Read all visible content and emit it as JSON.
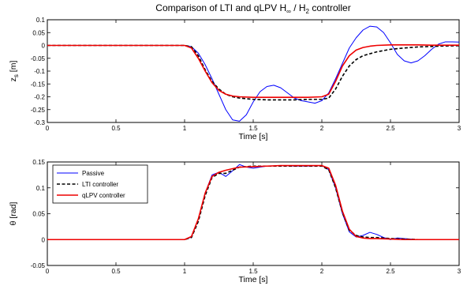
{
  "title": {
    "prefix": "Comparison of LTI and qLPV H",
    "sub": "∞",
    "middle": " / H",
    "sub2": "2",
    "suffix": " controller"
  },
  "colors": {
    "passive": "#0000ff",
    "lti": "#000000",
    "qlpv": "#ee0000",
    "axis": "#000000",
    "background": "#ffffff"
  },
  "chart_data": [
    {
      "type": "line",
      "xlabel": "Time [s]",
      "ylabel_main": "z",
      "ylabel_sub": "s",
      "ylabel_unit": " [m]",
      "xlim": [
        0,
        3
      ],
      "ylim": [
        -0.3,
        0.1
      ],
      "xticks": [
        0,
        0.5,
        1,
        1.5,
        2,
        2.5,
        3
      ],
      "xtick_labels": [
        "0",
        "0.5",
        "1",
        "1.5",
        "2",
        "2.5",
        "3"
      ],
      "yticks": [
        -0.3,
        -0.25,
        -0.2,
        -0.15,
        -0.1,
        -0.05,
        0,
        0.05,
        0.1
      ],
      "ytick_labels": [
        "-0.3",
        "-0.25",
        "-0.2",
        "-0.15",
        "-0.1",
        "-0.05",
        "0",
        "0.05",
        "0.1"
      ],
      "series": [
        {
          "key": "passive",
          "style": "solid",
          "x": [
            0,
            1.0,
            1.05,
            1.1,
            1.15,
            1.2,
            1.25,
            1.3,
            1.35,
            1.4,
            1.45,
            1.5,
            1.55,
            1.6,
            1.65,
            1.7,
            1.75,
            1.8,
            1.85,
            1.9,
            1.95,
            2.0,
            2.05,
            2.1,
            2.15,
            2.2,
            2.25,
            2.3,
            2.35,
            2.4,
            2.45,
            2.5,
            2.55,
            2.6,
            2.65,
            2.7,
            2.75,
            2.8,
            2.85,
            2.9,
            2.95,
            3.0
          ],
          "y": [
            0,
            0,
            -0.005,
            -0.03,
            -0.075,
            -0.13,
            -0.19,
            -0.25,
            -0.29,
            -0.295,
            -0.27,
            -0.22,
            -0.18,
            -0.16,
            -0.155,
            -0.165,
            -0.185,
            -0.205,
            -0.215,
            -0.22,
            -0.225,
            -0.215,
            -0.185,
            -0.13,
            -0.07,
            -0.01,
            0.03,
            0.06,
            0.075,
            0.072,
            0.05,
            0.01,
            -0.035,
            -0.06,
            -0.068,
            -0.06,
            -0.04,
            -0.015,
            0.005,
            0.014,
            0.014,
            0.013
          ]
        },
        {
          "key": "lti",
          "style": "dashed",
          "x": [
            0,
            1.0,
            1.05,
            1.1,
            1.15,
            1.2,
            1.25,
            1.3,
            1.35,
            1.4,
            1.5,
            1.6,
            1.7,
            1.8,
            1.9,
            2.0,
            2.05,
            2.1,
            2.15,
            2.2,
            2.25,
            2.3,
            2.4,
            2.5,
            2.6,
            2.7,
            2.8,
            2.9,
            3.0
          ],
          "y": [
            0,
            0,
            -0.005,
            -0.04,
            -0.095,
            -0.14,
            -0.17,
            -0.19,
            -0.2,
            -0.205,
            -0.21,
            -0.212,
            -0.212,
            -0.212,
            -0.21,
            -0.21,
            -0.205,
            -0.17,
            -0.12,
            -0.08,
            -0.055,
            -0.04,
            -0.025,
            -0.015,
            -0.01,
            -0.006,
            -0.004,
            -0.002,
            -0.001
          ]
        },
        {
          "key": "qlpv",
          "style": "solid",
          "x": [
            0,
            1.0,
            1.05,
            1.1,
            1.15,
            1.2,
            1.25,
            1.3,
            1.35,
            1.4,
            1.5,
            1.6,
            1.7,
            1.8,
            1.9,
            2.0,
            2.05,
            2.1,
            2.15,
            2.2,
            2.25,
            2.3,
            2.35,
            2.4,
            2.5,
            2.6,
            2.7,
            2.8,
            2.9,
            3.0
          ],
          "y": [
            0,
            0,
            -0.01,
            -0.05,
            -0.1,
            -0.145,
            -0.175,
            -0.19,
            -0.197,
            -0.2,
            -0.202,
            -0.202,
            -0.202,
            -0.202,
            -0.202,
            -0.2,
            -0.19,
            -0.14,
            -0.08,
            -0.04,
            -0.018,
            -0.008,
            -0.003,
            0.0,
            0.002,
            0.002,
            0.002,
            0.001,
            0.001,
            0.001
          ]
        }
      ]
    },
    {
      "type": "line",
      "xlabel": "Time [s]",
      "ylabel": "θ [rad]",
      "xlim": [
        0,
        3
      ],
      "ylim": [
        -0.05,
        0.15
      ],
      "xticks": [
        0,
        0.5,
        1,
        1.5,
        2,
        2.5,
        3
      ],
      "xtick_labels": [
        "0",
        "0.5",
        "1",
        "1.5",
        "2",
        "2.5",
        "3"
      ],
      "yticks": [
        -0.05,
        0,
        0.05,
        0.1,
        0.15
      ],
      "ytick_labels": [
        "-0.05",
        "0",
        "0.05",
        "0.1",
        "0.15"
      ],
      "legend": {
        "placement": "top-left",
        "entries": [
          "Passive",
          "LTI controller",
          "qLPV controller"
        ]
      },
      "series": [
        {
          "key": "passive",
          "name": "Passive",
          "style": "solid",
          "x": [
            0,
            1.0,
            1.05,
            1.1,
            1.15,
            1.2,
            1.25,
            1.3,
            1.35,
            1.4,
            1.45,
            1.5,
            1.55,
            1.6,
            1.7,
            1.8,
            1.9,
            2.0,
            2.05,
            2.1,
            2.15,
            2.2,
            2.25,
            2.3,
            2.35,
            2.4,
            2.45,
            2.5,
            2.55,
            2.6,
            2.7,
            2.8,
            2.9,
            3.0
          ],
          "y": [
            0,
            0,
            0.005,
            0.04,
            0.09,
            0.125,
            0.13,
            0.122,
            0.133,
            0.145,
            0.14,
            0.138,
            0.14,
            0.142,
            0.143,
            0.142,
            0.142,
            0.143,
            0.135,
            0.1,
            0.05,
            0.015,
            0.005,
            0.008,
            0.014,
            0.01,
            0.004,
            0.0,
            0.003,
            0.002,
            0.0,
            0.0,
            0.0,
            0.0
          ]
        },
        {
          "key": "lti",
          "name": "LTI controller",
          "style": "dashed",
          "x": [
            0,
            1.0,
            1.05,
            1.1,
            1.15,
            1.2,
            1.25,
            1.3,
            1.35,
            1.4,
            1.5,
            1.6,
            1.7,
            1.8,
            1.9,
            2.0,
            2.05,
            2.1,
            2.15,
            2.2,
            2.25,
            2.3,
            2.35,
            2.4,
            2.5,
            2.6,
            2.7,
            2.8,
            2.9,
            3.0
          ],
          "y": [
            0,
            0,
            0.004,
            0.035,
            0.085,
            0.12,
            0.128,
            0.128,
            0.134,
            0.14,
            0.142,
            0.142,
            0.142,
            0.142,
            0.142,
            0.142,
            0.135,
            0.1,
            0.052,
            0.018,
            0.008,
            0.005,
            0.004,
            0.004,
            0.002,
            0.001,
            0.0,
            0.0,
            0.0,
            0.0
          ]
        },
        {
          "key": "qlpv",
          "name": "qLPV controller",
          "style": "solid",
          "x": [
            0,
            1.0,
            1.05,
            1.1,
            1.15,
            1.2,
            1.25,
            1.3,
            1.35,
            1.4,
            1.5,
            1.6,
            1.7,
            1.8,
            1.9,
            2.0,
            2.05,
            2.1,
            2.15,
            2.2,
            2.25,
            2.3,
            2.35,
            2.4,
            2.5,
            2.6,
            2.7,
            2.8,
            2.9,
            3.0
          ],
          "y": [
            0,
            0,
            0.006,
            0.04,
            0.09,
            0.122,
            0.13,
            0.134,
            0.137,
            0.14,
            0.141,
            0.142,
            0.143,
            0.143,
            0.143,
            0.143,
            0.138,
            0.105,
            0.055,
            0.02,
            0.006,
            0.003,
            0.002,
            0.002,
            0.001,
            0.0,
            0.0,
            0.0,
            0.0,
            0.0
          ]
        }
      ]
    }
  ]
}
